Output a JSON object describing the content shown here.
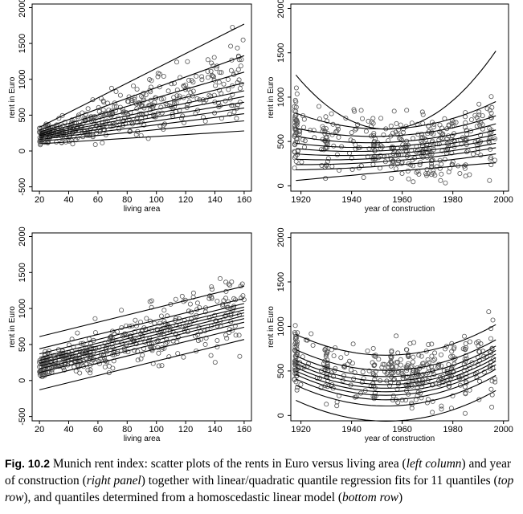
{
  "chart_data": [
    {
      "type": "scatter",
      "panel": "top-left",
      "xlabel": "living area",
      "ylabel": "rent in Euro",
      "xlim": [
        15,
        165
      ],
      "ylim": [
        -560,
        2050
      ],
      "xticks": [
        "20",
        "40",
        "60",
        "80",
        "100",
        "120",
        "140",
        "160"
      ],
      "yticks": [
        "-500",
        "0",
        "500",
        "1000",
        "1500",
        "2000"
      ],
      "fit": "linear quantile regression",
      "quantiles": 11,
      "fit_lines": [
        {
          "x": [
            20,
            160
          ],
          "y": [
            100,
            280
          ]
        },
        {
          "x": [
            20,
            160
          ],
          "y": [
            135,
            420
          ]
        },
        {
          "x": [
            20,
            160
          ],
          "y": [
            160,
            520
          ]
        },
        {
          "x": [
            20,
            160
          ],
          "y": [
            180,
            600
          ]
        },
        {
          "x": [
            20,
            160
          ],
          "y": [
            200,
            680
          ]
        },
        {
          "x": [
            20,
            160
          ],
          "y": [
            215,
            760
          ]
        },
        {
          "x": [
            20,
            160
          ],
          "y": [
            230,
            840
          ]
        },
        {
          "x": [
            20,
            160
          ],
          "y": [
            245,
            950
          ]
        },
        {
          "x": [
            20,
            160
          ],
          "y": [
            265,
            1100
          ]
        },
        {
          "x": [
            20,
            160
          ],
          "y": [
            290,
            1330
          ]
        },
        {
          "x": [
            20,
            160
          ],
          "y": [
            330,
            1770
          ]
        }
      ]
    },
    {
      "type": "scatter",
      "panel": "top-right",
      "xlabel": "year of construction",
      "ylabel": "rent in Euro",
      "xlim": [
        1916,
        2002
      ],
      "ylim": [
        -60,
        2050
      ],
      "xticks": [
        "1920",
        "1940",
        "1960",
        "1980",
        "2000"
      ],
      "yticks": [
        "0",
        "500",
        "1000",
        "1500",
        "2000"
      ],
      "fit": "quadratic quantile regression",
      "quantiles": 11,
      "fit_lines": [
        {
          "x": [
            1918,
            1960,
            1997
          ],
          "y": [
            60,
            170,
            260
          ]
        },
        {
          "x": [
            1918,
            1960,
            1997
          ],
          "y": [
            180,
            240,
            360
          ]
        },
        {
          "x": [
            1918,
            1960,
            1997
          ],
          "y": [
            240,
            290,
            430
          ]
        },
        {
          "x": [
            1918,
            1960,
            1997
          ],
          "y": [
            300,
            330,
            480
          ]
        },
        {
          "x": [
            1918,
            1960,
            1997
          ],
          "y": [
            360,
            370,
            530
          ]
        },
        {
          "x": [
            1918,
            1960,
            1997
          ],
          "y": [
            420,
            410,
            580
          ]
        },
        {
          "x": [
            1918,
            1960,
            1997
          ],
          "y": [
            480,
            450,
            630
          ]
        },
        {
          "x": [
            1918,
            1960,
            1997
          ],
          "y": [
            560,
            500,
            700
          ]
        },
        {
          "x": [
            1918,
            1960,
            1997
          ],
          "y": [
            650,
            570,
            790
          ]
        },
        {
          "x": [
            1918,
            1960,
            1997
          ],
          "y": [
            820,
            650,
            950
          ]
        },
        {
          "x": [
            1918,
            1962,
            1997
          ],
          "y": [
            1250,
            670,
            1520
          ]
        }
      ]
    },
    {
      "type": "scatter",
      "panel": "bottom-left",
      "xlabel": "living area",
      "ylabel": "rent in Euro",
      "xlim": [
        15,
        165
      ],
      "ylim": [
        -560,
        2050
      ],
      "xticks": [
        "20",
        "40",
        "60",
        "80",
        "100",
        "120",
        "140",
        "160"
      ],
      "yticks": [
        "-500",
        "0",
        "500",
        "1000",
        "1500",
        "2000"
      ],
      "fit": "homoscedastic linear model quantiles",
      "quantiles": 11,
      "fit_lines": [
        {
          "x": [
            20,
            160
          ],
          "y": [
            -130,
            570
          ]
        },
        {
          "x": [
            20,
            160
          ],
          "y": [
            40,
            740
          ]
        },
        {
          "x": [
            20,
            160
          ],
          "y": [
            110,
            810
          ]
        },
        {
          "x": [
            20,
            160
          ],
          "y": [
            160,
            860
          ]
        },
        {
          "x": [
            20,
            160
          ],
          "y": [
            200,
            900
          ]
        },
        {
          "x": [
            20,
            160
          ],
          "y": [
            240,
            940
          ]
        },
        {
          "x": [
            20,
            160
          ],
          "y": [
            280,
            980
          ]
        },
        {
          "x": [
            20,
            160
          ],
          "y": [
            320,
            1020
          ]
        },
        {
          "x": [
            20,
            160
          ],
          "y": [
            370,
            1070
          ]
        },
        {
          "x": [
            20,
            160
          ],
          "y": [
            440,
            1140
          ]
        },
        {
          "x": [
            20,
            160
          ],
          "y": [
            610,
            1310
          ]
        }
      ]
    },
    {
      "type": "scatter",
      "panel": "bottom-right",
      "xlabel": "year of construction",
      "ylabel": "rent in Euro",
      "xlim": [
        1916,
        2002
      ],
      "ylim": [
        -60,
        2050
      ],
      "xticks": [
        "1920",
        "1940",
        "1960",
        "1980",
        "2000"
      ],
      "yticks": [
        "0",
        "500",
        "1000",
        "1500",
        "2000"
      ],
      "fit": "homoscedastic quadratic model quantiles",
      "quantiles": 11,
      "fit_lines": [
        {
          "x": [
            1918,
            1958,
            1997
          ],
          "y": [
            170,
            -60,
            280
          ]
        },
        {
          "x": [
            1918,
            1958,
            1997
          ],
          "y": [
            340,
            110,
            450
          ]
        },
        {
          "x": [
            1918,
            1958,
            1997
          ],
          "y": [
            410,
            180,
            520
          ]
        },
        {
          "x": [
            1918,
            1958,
            1997
          ],
          "y": [
            460,
            230,
            570
          ]
        },
        {
          "x": [
            1918,
            1958,
            1997
          ],
          "y": [
            500,
            270,
            610
          ]
        },
        {
          "x": [
            1918,
            1958,
            1997
          ],
          "y": [
            540,
            310,
            650
          ]
        },
        {
          "x": [
            1918,
            1958,
            1997
          ],
          "y": [
            580,
            350,
            690
          ]
        },
        {
          "x": [
            1918,
            1958,
            1997
          ],
          "y": [
            620,
            390,
            730
          ]
        },
        {
          "x": [
            1918,
            1958,
            1997
          ],
          "y": [
            670,
            440,
            780
          ]
        },
        {
          "x": [
            1918,
            1958,
            1997
          ],
          "y": [
            740,
            510,
            850
          ]
        },
        {
          "x": [
            1918,
            1958,
            1997
          ],
          "y": [
            910,
            680,
            1020
          ]
        }
      ]
    }
  ],
  "caption": {
    "label": "Fig. 10.2",
    "t1": "  Munich rent index: scatter plots of the rents in Euro versus living area (",
    "i1": "left column",
    "t2": ") and year of construction (",
    "i2": "right panel",
    "t3": ") together with linear/quadratic quantile regression fits for 11 quantiles (",
    "i3": "top row",
    "t4": "), and quantiles determined from a homoscedastic linear model (",
    "i4": "bottom row",
    "t5": ")"
  },
  "colors": {
    "points": "#555555",
    "lines": "#000000",
    "axes": "#000000"
  }
}
